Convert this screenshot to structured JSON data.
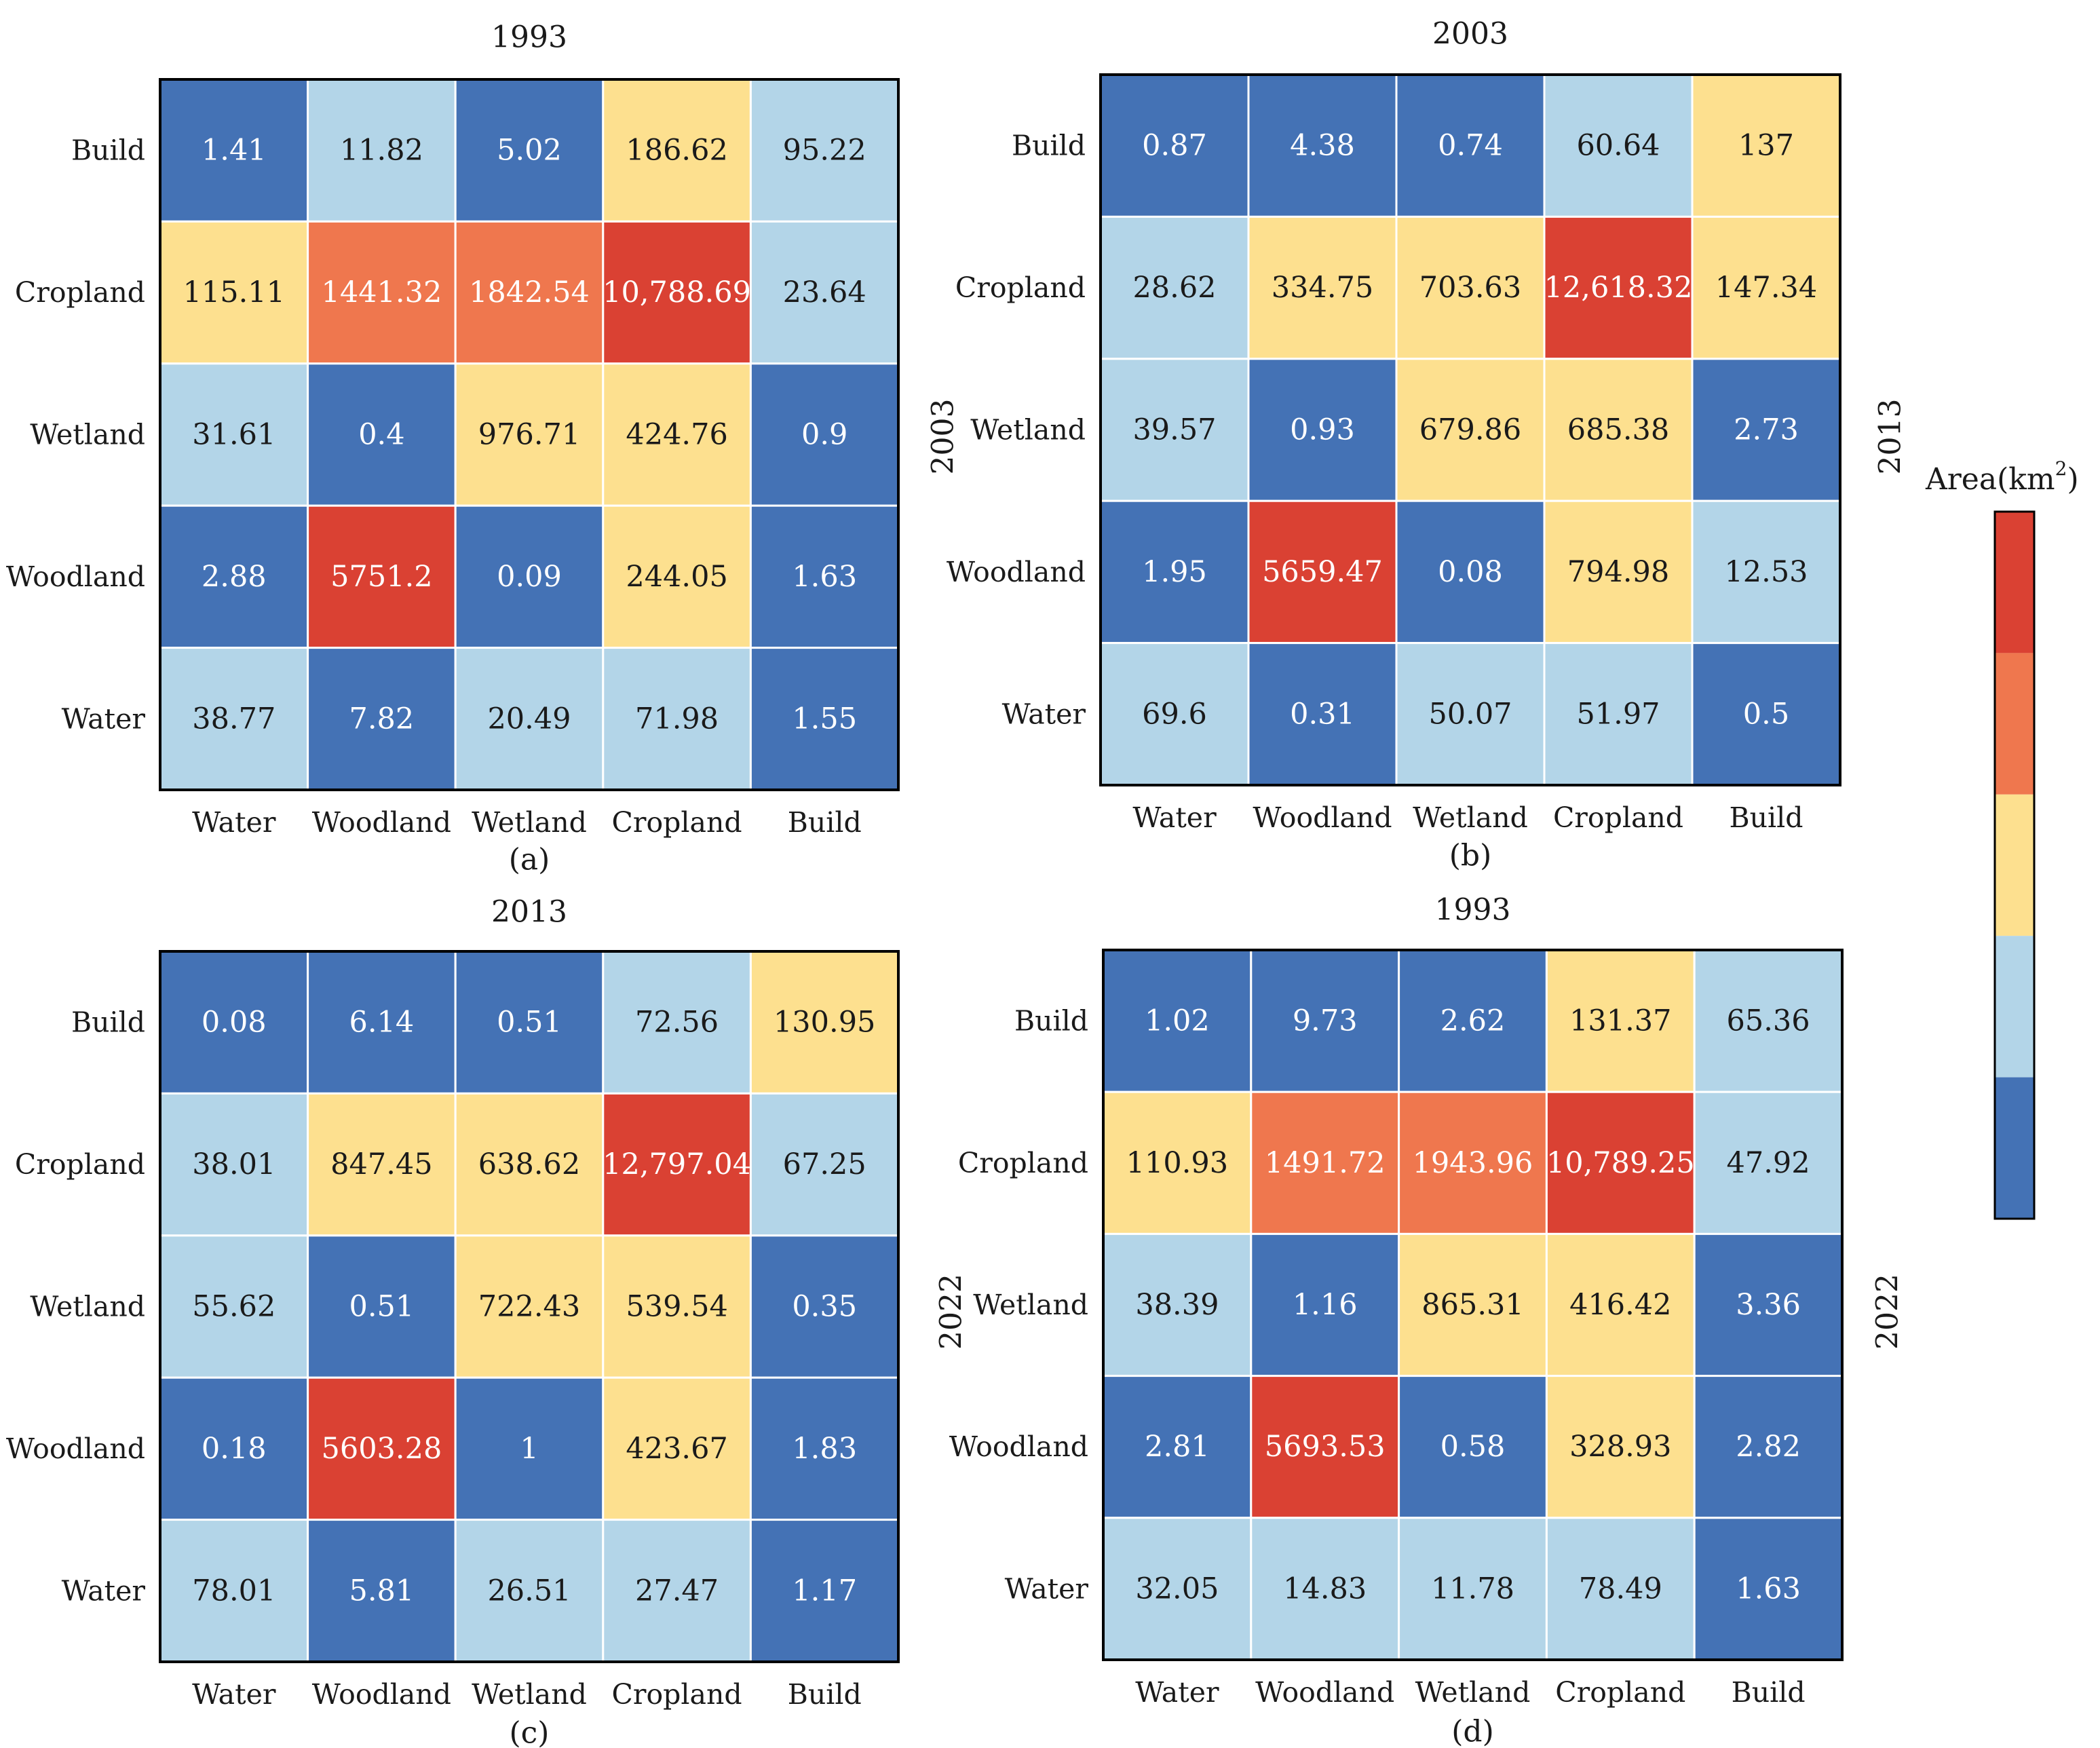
{
  "chart_data": [
    {
      "type": "heatmap",
      "panel_label": "(a)",
      "title": "1993",
      "side_label": "",
      "right_label": "",
      "x_categories": [
        "Water",
        "Woodland",
        "Wetland",
        "Cropland",
        "Build"
      ],
      "y_categories": [
        "Build",
        "Cropland",
        "Wetland",
        "Woodland",
        "Water"
      ],
      "cells": [
        [
          {
            "label": "1.41",
            "level": 0
          },
          {
            "label": "11.82",
            "level": 1
          },
          {
            "label": "5.02",
            "level": 0
          },
          {
            "label": "186.62",
            "level": 2
          },
          {
            "label": "95.22",
            "level": 1
          }
        ],
        [
          {
            "label": "115.11",
            "level": 2
          },
          {
            "label": "1441.32",
            "level": 3
          },
          {
            "label": "1842.54",
            "level": 3
          },
          {
            "label": "10,788.69",
            "level": 4
          },
          {
            "label": "23.64",
            "level": 1
          }
        ],
        [
          {
            "label": "31.61",
            "level": 1
          },
          {
            "label": "0.4",
            "level": 0
          },
          {
            "label": "976.71",
            "level": 2
          },
          {
            "label": "424.76",
            "level": 2
          },
          {
            "label": "0.9",
            "level": 0
          }
        ],
        [
          {
            "label": "2.88",
            "level": 0
          },
          {
            "label": "5751.2",
            "level": 4
          },
          {
            "label": "0.09",
            "level": 0
          },
          {
            "label": "244.05",
            "level": 2
          },
          {
            "label": "1.63",
            "level": 0
          }
        ],
        [
          {
            "label": "38.77",
            "level": 1
          },
          {
            "label": "7.82",
            "level": 0
          },
          {
            "label": "20.49",
            "level": 1
          },
          {
            "label": "71.98",
            "level": 1
          },
          {
            "label": "1.55",
            "level": 0
          }
        ]
      ]
    },
    {
      "type": "heatmap",
      "panel_label": "(b)",
      "title": "2003",
      "side_label": "2003",
      "right_label": "2013",
      "x_categories": [
        "Water",
        "Woodland",
        "Wetland",
        "Cropland",
        "Build"
      ],
      "y_categories": [
        "Build",
        "Cropland",
        "Wetland",
        "Woodland",
        "Water"
      ],
      "cells": [
        [
          {
            "label": "0.87",
            "level": 0
          },
          {
            "label": "4.38",
            "level": 0
          },
          {
            "label": "0.74",
            "level": 0
          },
          {
            "label": "60.64",
            "level": 1
          },
          {
            "label": "137",
            "level": 2
          }
        ],
        [
          {
            "label": "28.62",
            "level": 1
          },
          {
            "label": "334.75",
            "level": 2
          },
          {
            "label": "703.63",
            "level": 2
          },
          {
            "label": "12,618.32",
            "level": 4
          },
          {
            "label": "147.34",
            "level": 2
          }
        ],
        [
          {
            "label": "39.57",
            "level": 1
          },
          {
            "label": "0.93",
            "level": 0
          },
          {
            "label": "679.86",
            "level": 2
          },
          {
            "label": "685.38",
            "level": 2
          },
          {
            "label": "2.73",
            "level": 0
          }
        ],
        [
          {
            "label": "1.95",
            "level": 0
          },
          {
            "label": "5659.47",
            "level": 4
          },
          {
            "label": "0.08",
            "level": 0
          },
          {
            "label": "794.98",
            "level": 2
          },
          {
            "label": "12.53",
            "level": 1
          }
        ],
        [
          {
            "label": "69.6",
            "level": 1
          },
          {
            "label": "0.31",
            "level": 0
          },
          {
            "label": "50.07",
            "level": 1
          },
          {
            "label": "51.97",
            "level": 1
          },
          {
            "label": "0.5",
            "level": 0
          }
        ]
      ]
    },
    {
      "type": "heatmap",
      "panel_label": "(c)",
      "title": "2013",
      "side_label": "",
      "right_label": "",
      "x_categories": [
        "Water",
        "Woodland",
        "Wetland",
        "Cropland",
        "Build"
      ],
      "y_categories": [
        "Build",
        "Cropland",
        "Wetland",
        "Woodland",
        "Water"
      ],
      "cells": [
        [
          {
            "label": "0.08",
            "level": 0
          },
          {
            "label": "6.14",
            "level": 0
          },
          {
            "label": "0.51",
            "level": 0
          },
          {
            "label": "72.56",
            "level": 1
          },
          {
            "label": "130.95",
            "level": 2
          }
        ],
        [
          {
            "label": "38.01",
            "level": 1
          },
          {
            "label": "847.45",
            "level": 2
          },
          {
            "label": "638.62",
            "level": 2
          },
          {
            "label": "12,797.04",
            "level": 4
          },
          {
            "label": "67.25",
            "level": 1
          }
        ],
        [
          {
            "label": "55.62",
            "level": 1
          },
          {
            "label": "0.51",
            "level": 0
          },
          {
            "label": "722.43",
            "level": 2
          },
          {
            "label": "539.54",
            "level": 2
          },
          {
            "label": "0.35",
            "level": 0
          }
        ],
        [
          {
            "label": "0.18",
            "level": 0
          },
          {
            "label": "5603.28",
            "level": 4
          },
          {
            "label": "1",
            "level": 0
          },
          {
            "label": "423.67",
            "level": 2
          },
          {
            "label": "1.83",
            "level": 0
          }
        ],
        [
          {
            "label": "78.01",
            "level": 1
          },
          {
            "label": "5.81",
            "level": 0
          },
          {
            "label": "26.51",
            "level": 1
          },
          {
            "label": "27.47",
            "level": 1
          },
          {
            "label": "1.17",
            "level": 0
          }
        ]
      ]
    },
    {
      "type": "heatmap",
      "panel_label": "(d)",
      "title": "1993",
      "side_label": "2022",
      "right_label": "2022",
      "x_categories": [
        "Water",
        "Woodland",
        "Wetland",
        "Cropland",
        "Build"
      ],
      "y_categories": [
        "Build",
        "Cropland",
        "Wetland",
        "Woodland",
        "Water"
      ],
      "cells": [
        [
          {
            "label": "1.02",
            "level": 0
          },
          {
            "label": "9.73",
            "level": 0
          },
          {
            "label": "2.62",
            "level": 0
          },
          {
            "label": "131.37",
            "level": 2
          },
          {
            "label": "65.36",
            "level": 1
          }
        ],
        [
          {
            "label": "110.93",
            "level": 2
          },
          {
            "label": "1491.72",
            "level": 3
          },
          {
            "label": "1943.96",
            "level": 3
          },
          {
            "label": "10,789.25",
            "level": 4
          },
          {
            "label": "47.92",
            "level": 1
          }
        ],
        [
          {
            "label": "38.39",
            "level": 1
          },
          {
            "label": "1.16",
            "level": 0
          },
          {
            "label": "865.31",
            "level": 2
          },
          {
            "label": "416.42",
            "level": 2
          },
          {
            "label": "3.36",
            "level": 0
          }
        ],
        [
          {
            "label": "2.81",
            "level": 0
          },
          {
            "label": "5693.53",
            "level": 4
          },
          {
            "label": "0.58",
            "level": 0
          },
          {
            "label": "328.93",
            "level": 2
          },
          {
            "label": "2.82",
            "level": 0
          }
        ],
        [
          {
            "label": "32.05",
            "level": 1
          },
          {
            "label": "14.83",
            "level": 1
          },
          {
            "label": "11.78",
            "level": 1
          },
          {
            "label": "78.49",
            "level": 1
          },
          {
            "label": "1.63",
            "level": 0
          }
        ]
      ]
    }
  ],
  "legend": {
    "title": "Area(km",
    "superscript": "2",
    "title_close": ")",
    "colors": [
      "#4472b5",
      "#b3d5e8",
      "#fde08f",
      "#ef774e",
      "#da4133"
    ]
  },
  "colors": {
    "cell_text_dark": "#1a1a1a",
    "cell_text_light": "#ffffff",
    "grid": "#ffffff",
    "frame": "#000000"
  }
}
